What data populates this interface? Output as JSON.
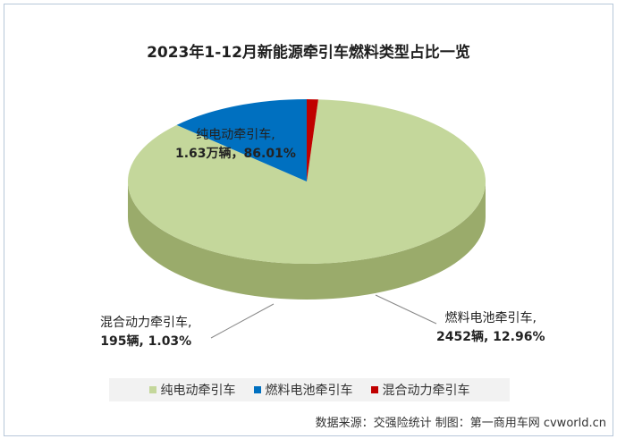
{
  "chart_data": {
    "type": "pie",
    "title": "2023年1-12月新能源牵引车燃料类型占比一览",
    "slices": [
      {
        "name": "纯电动牵引车",
        "value_label": "1.63万辆，86.01%",
        "percent": 86.01,
        "color": "#c4d79b",
        "side_color": "#9aab6b"
      },
      {
        "name": "燃料电池牵引车",
        "value_label": "2452辆，12.96%",
        "percent": 12.96,
        "color": "#0070c0",
        "side_color": "#003f78"
      },
      {
        "name": "混合动力牵引车",
        "value_label": "195辆，1.03%",
        "percent": 1.03,
        "color": "#c00000",
        "side_color": "#7a0000"
      }
    ],
    "labels": {
      "s0_line1": "纯电动牵引车,",
      "s0_line2": "1.63万辆，86.01%",
      "s1_line1": "燃料电池牵引车,",
      "s1_line2": "2452辆, 12.96%",
      "s2_line1": "混合动力牵引车,",
      "s2_line2": "195辆, 1.03%"
    },
    "legend": [
      "纯电动牵引车",
      "燃料电池牵引车",
      "混合动力牵引车"
    ],
    "legend_position": "bottom"
  },
  "source_text": "数据来源：交强险统计 制图：第一商用车网 cvworld.cn"
}
